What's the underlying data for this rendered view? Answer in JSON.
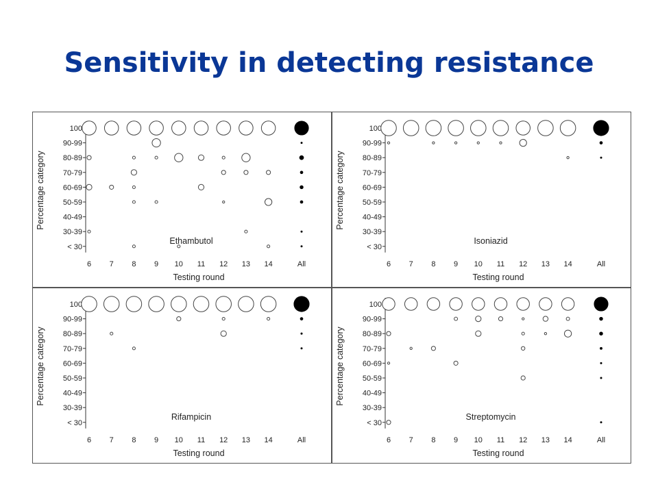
{
  "slide": {
    "title": "Sensitivity in detecting resistance"
  },
  "colors": {
    "title": "#0a3796",
    "open_marker": "#444444",
    "filled_marker": "#000000",
    "panel_border": "#555555"
  },
  "chart_data": [
    {
      "type": "scatter",
      "title": "Ethambutol",
      "xlabel": "Testing round",
      "ylabel": "Percentage category",
      "x_categories": [
        "6",
        "7",
        "8",
        "9",
        "10",
        "11",
        "12",
        "13",
        "14",
        "All"
      ],
      "y_categories": [
        "100",
        "90-99",
        "80-89",
        "70-79",
        "60-69",
        "50-59",
        "40-49",
        "30-39",
        "< 30"
      ],
      "points": [
        {
          "x": "6",
          "y": "100",
          "size": 5
        },
        {
          "x": "7",
          "y": "100",
          "size": 5
        },
        {
          "x": "8",
          "y": "100",
          "size": 5
        },
        {
          "x": "9",
          "y": "100",
          "size": 5
        },
        {
          "x": "10",
          "y": "100",
          "size": 5
        },
        {
          "x": "11",
          "y": "100",
          "size": 5
        },
        {
          "x": "12",
          "y": "100",
          "size": 5
        },
        {
          "x": "13",
          "y": "100",
          "size": 5
        },
        {
          "x": "14",
          "y": "100",
          "size": 5
        },
        {
          "x": "All",
          "y": "100",
          "size": 5
        },
        {
          "x": "9",
          "y": "90-99",
          "size": 3
        },
        {
          "x": "All",
          "y": "90-99",
          "size": 0.5
        },
        {
          "x": "6",
          "y": "80-89",
          "size": 1.5
        },
        {
          "x": "8",
          "y": "80-89",
          "size": 1
        },
        {
          "x": "9",
          "y": "80-89",
          "size": 1
        },
        {
          "x": "10",
          "y": "80-89",
          "size": 3
        },
        {
          "x": "11",
          "y": "80-89",
          "size": 2
        },
        {
          "x": "12",
          "y": "80-89",
          "size": 1
        },
        {
          "x": "13",
          "y": "80-89",
          "size": 3
        },
        {
          "x": "All",
          "y": "80-89",
          "size": 1.5
        },
        {
          "x": "8",
          "y": "70-79",
          "size": 2
        },
        {
          "x": "12",
          "y": "70-79",
          "size": 1.5
        },
        {
          "x": "13",
          "y": "70-79",
          "size": 1.5
        },
        {
          "x": "14",
          "y": "70-79",
          "size": 1.5
        },
        {
          "x": "All",
          "y": "70-79",
          "size": 1
        },
        {
          "x": "6",
          "y": "60-69",
          "size": 2
        },
        {
          "x": "7",
          "y": "60-69",
          "size": 1.5
        },
        {
          "x": "8",
          "y": "60-69",
          "size": 1
        },
        {
          "x": "11",
          "y": "60-69",
          "size": 2
        },
        {
          "x": "All",
          "y": "60-69",
          "size": 1.2
        },
        {
          "x": "8",
          "y": "50-59",
          "size": 1
        },
        {
          "x": "9",
          "y": "50-59",
          "size": 1
        },
        {
          "x": "12",
          "y": "50-59",
          "size": 0.8
        },
        {
          "x": "14",
          "y": "50-59",
          "size": 2.5
        },
        {
          "x": "All",
          "y": "50-59",
          "size": 1
        },
        {
          "x": "6",
          "y": "30-39",
          "size": 1
        },
        {
          "x": "13",
          "y": "30-39",
          "size": 1
        },
        {
          "x": "All",
          "y": "30-39",
          "size": 0.4
        },
        {
          "x": "8",
          "y": "< 30",
          "size": 1
        },
        {
          "x": "10",
          "y": "< 30",
          "size": 1
        },
        {
          "x": "14",
          "y": "< 30",
          "size": 1
        },
        {
          "x": "All",
          "y": "< 30",
          "size": 0.4
        }
      ]
    },
    {
      "type": "scatter",
      "title": "Isoniazid",
      "xlabel": "Testing round",
      "ylabel": "Percentage category",
      "x_categories": [
        "6",
        "7",
        "8",
        "9",
        "10",
        "11",
        "12",
        "13",
        "14",
        "All"
      ],
      "y_categories": [
        "100",
        "90-99",
        "80-89",
        "70-79",
        "60-69",
        "50-59",
        "40-49",
        "30-39",
        "< 30"
      ],
      "points": [
        {
          "x": "6",
          "y": "100",
          "size": 5.5
        },
        {
          "x": "7",
          "y": "100",
          "size": 5.5
        },
        {
          "x": "8",
          "y": "100",
          "size": 5.5
        },
        {
          "x": "9",
          "y": "100",
          "size": 5.5
        },
        {
          "x": "10",
          "y": "100",
          "size": 5.5
        },
        {
          "x": "11",
          "y": "100",
          "size": 5.5
        },
        {
          "x": "12",
          "y": "100",
          "size": 5
        },
        {
          "x": "13",
          "y": "100",
          "size": 5.5
        },
        {
          "x": "14",
          "y": "100",
          "size": 5.5
        },
        {
          "x": "All",
          "y": "100",
          "size": 5.5
        },
        {
          "x": "6",
          "y": "90-99",
          "size": 0.8
        },
        {
          "x": "8",
          "y": "90-99",
          "size": 0.8
        },
        {
          "x": "9",
          "y": "90-99",
          "size": 0.8
        },
        {
          "x": "10",
          "y": "90-99",
          "size": 0.8
        },
        {
          "x": "11",
          "y": "90-99",
          "size": 0.8
        },
        {
          "x": "12",
          "y": "90-99",
          "size": 2.5
        },
        {
          "x": "All",
          "y": "90-99",
          "size": 1
        },
        {
          "x": "14",
          "y": "80-89",
          "size": 0.8
        },
        {
          "x": "All",
          "y": "80-89",
          "size": 0.4
        }
      ]
    },
    {
      "type": "scatter",
      "title": "Rifampicin",
      "xlabel": "Testing round",
      "ylabel": "Percentage category",
      "x_categories": [
        "6",
        "7",
        "8",
        "9",
        "10",
        "11",
        "12",
        "13",
        "14",
        "All"
      ],
      "y_categories": [
        "100",
        "90-99",
        "80-89",
        "70-79",
        "60-69",
        "50-59",
        "40-49",
        "30-39",
        "< 30"
      ],
      "points": [
        {
          "x": "6",
          "y": "100",
          "size": 5.5
        },
        {
          "x": "7",
          "y": "100",
          "size": 5.5
        },
        {
          "x": "8",
          "y": "100",
          "size": 5.5
        },
        {
          "x": "9",
          "y": "100",
          "size": 5.5
        },
        {
          "x": "10",
          "y": "100",
          "size": 5.5
        },
        {
          "x": "11",
          "y": "100",
          "size": 5.5
        },
        {
          "x": "12",
          "y": "100",
          "size": 5.5
        },
        {
          "x": "13",
          "y": "100",
          "size": 5.5
        },
        {
          "x": "14",
          "y": "100",
          "size": 5.5
        },
        {
          "x": "All",
          "y": "100",
          "size": 5.5
        },
        {
          "x": "10",
          "y": "90-99",
          "size": 1.5
        },
        {
          "x": "12",
          "y": "90-99",
          "size": 1
        },
        {
          "x": "14",
          "y": "90-99",
          "size": 1
        },
        {
          "x": "All",
          "y": "90-99",
          "size": 1
        },
        {
          "x": "7",
          "y": "80-89",
          "size": 1
        },
        {
          "x": "12",
          "y": "80-89",
          "size": 2
        },
        {
          "x": "All",
          "y": "80-89",
          "size": 0.6
        },
        {
          "x": "8",
          "y": "70-79",
          "size": 1
        },
        {
          "x": "All",
          "y": "70-79",
          "size": 0.4
        }
      ]
    },
    {
      "type": "scatter",
      "title": "Streptomycin",
      "xlabel": "Testing round",
      "ylabel": "Percentage category",
      "x_categories": [
        "6",
        "7",
        "8",
        "9",
        "10",
        "11",
        "12",
        "13",
        "14",
        "All"
      ],
      "y_categories": [
        "100",
        "90-99",
        "80-89",
        "70-79",
        "60-69",
        "50-59",
        "40-49",
        "30-39",
        "< 30"
      ],
      "points": [
        {
          "x": "6",
          "y": "100",
          "size": 4.5
        },
        {
          "x": "7",
          "y": "100",
          "size": 4.5
        },
        {
          "x": "8",
          "y": "100",
          "size": 4.5
        },
        {
          "x": "9",
          "y": "100",
          "size": 4.5
        },
        {
          "x": "10",
          "y": "100",
          "size": 4.5
        },
        {
          "x": "11",
          "y": "100",
          "size": 4.5
        },
        {
          "x": "12",
          "y": "100",
          "size": 4.5
        },
        {
          "x": "13",
          "y": "100",
          "size": 4.5
        },
        {
          "x": "14",
          "y": "100",
          "size": 4.5
        },
        {
          "x": "All",
          "y": "100",
          "size": 5
        },
        {
          "x": "9",
          "y": "90-99",
          "size": 1.2
        },
        {
          "x": "10",
          "y": "90-99",
          "size": 2
        },
        {
          "x": "11",
          "y": "90-99",
          "size": 1.5
        },
        {
          "x": "12",
          "y": "90-99",
          "size": 0.8
        },
        {
          "x": "13",
          "y": "90-99",
          "size": 1.8
        },
        {
          "x": "14",
          "y": "90-99",
          "size": 1.2
        },
        {
          "x": "All",
          "y": "90-99",
          "size": 1.2
        },
        {
          "x": "6",
          "y": "80-89",
          "size": 1.5
        },
        {
          "x": "10",
          "y": "80-89",
          "size": 2
        },
        {
          "x": "12",
          "y": "80-89",
          "size": 1
        },
        {
          "x": "13",
          "y": "80-89",
          "size": 0.8
        },
        {
          "x": "14",
          "y": "80-89",
          "size": 2.5
        },
        {
          "x": "All",
          "y": "80-89",
          "size": 1.2
        },
        {
          "x": "7",
          "y": "70-79",
          "size": 0.8
        },
        {
          "x": "8",
          "y": "70-79",
          "size": 1.5
        },
        {
          "x": "12",
          "y": "70-79",
          "size": 1.3
        },
        {
          "x": "All",
          "y": "70-79",
          "size": 0.8
        },
        {
          "x": "6",
          "y": "60-69",
          "size": 0.8
        },
        {
          "x": "9",
          "y": "60-69",
          "size": 1.5
        },
        {
          "x": "All",
          "y": "60-69",
          "size": 0.4
        },
        {
          "x": "12",
          "y": "50-59",
          "size": 1.5
        },
        {
          "x": "All",
          "y": "50-59",
          "size": 0.4
        },
        {
          "x": "6",
          "y": "< 30",
          "size": 1.5
        },
        {
          "x": "All",
          "y": "< 30",
          "size": 0.4
        }
      ]
    }
  ]
}
